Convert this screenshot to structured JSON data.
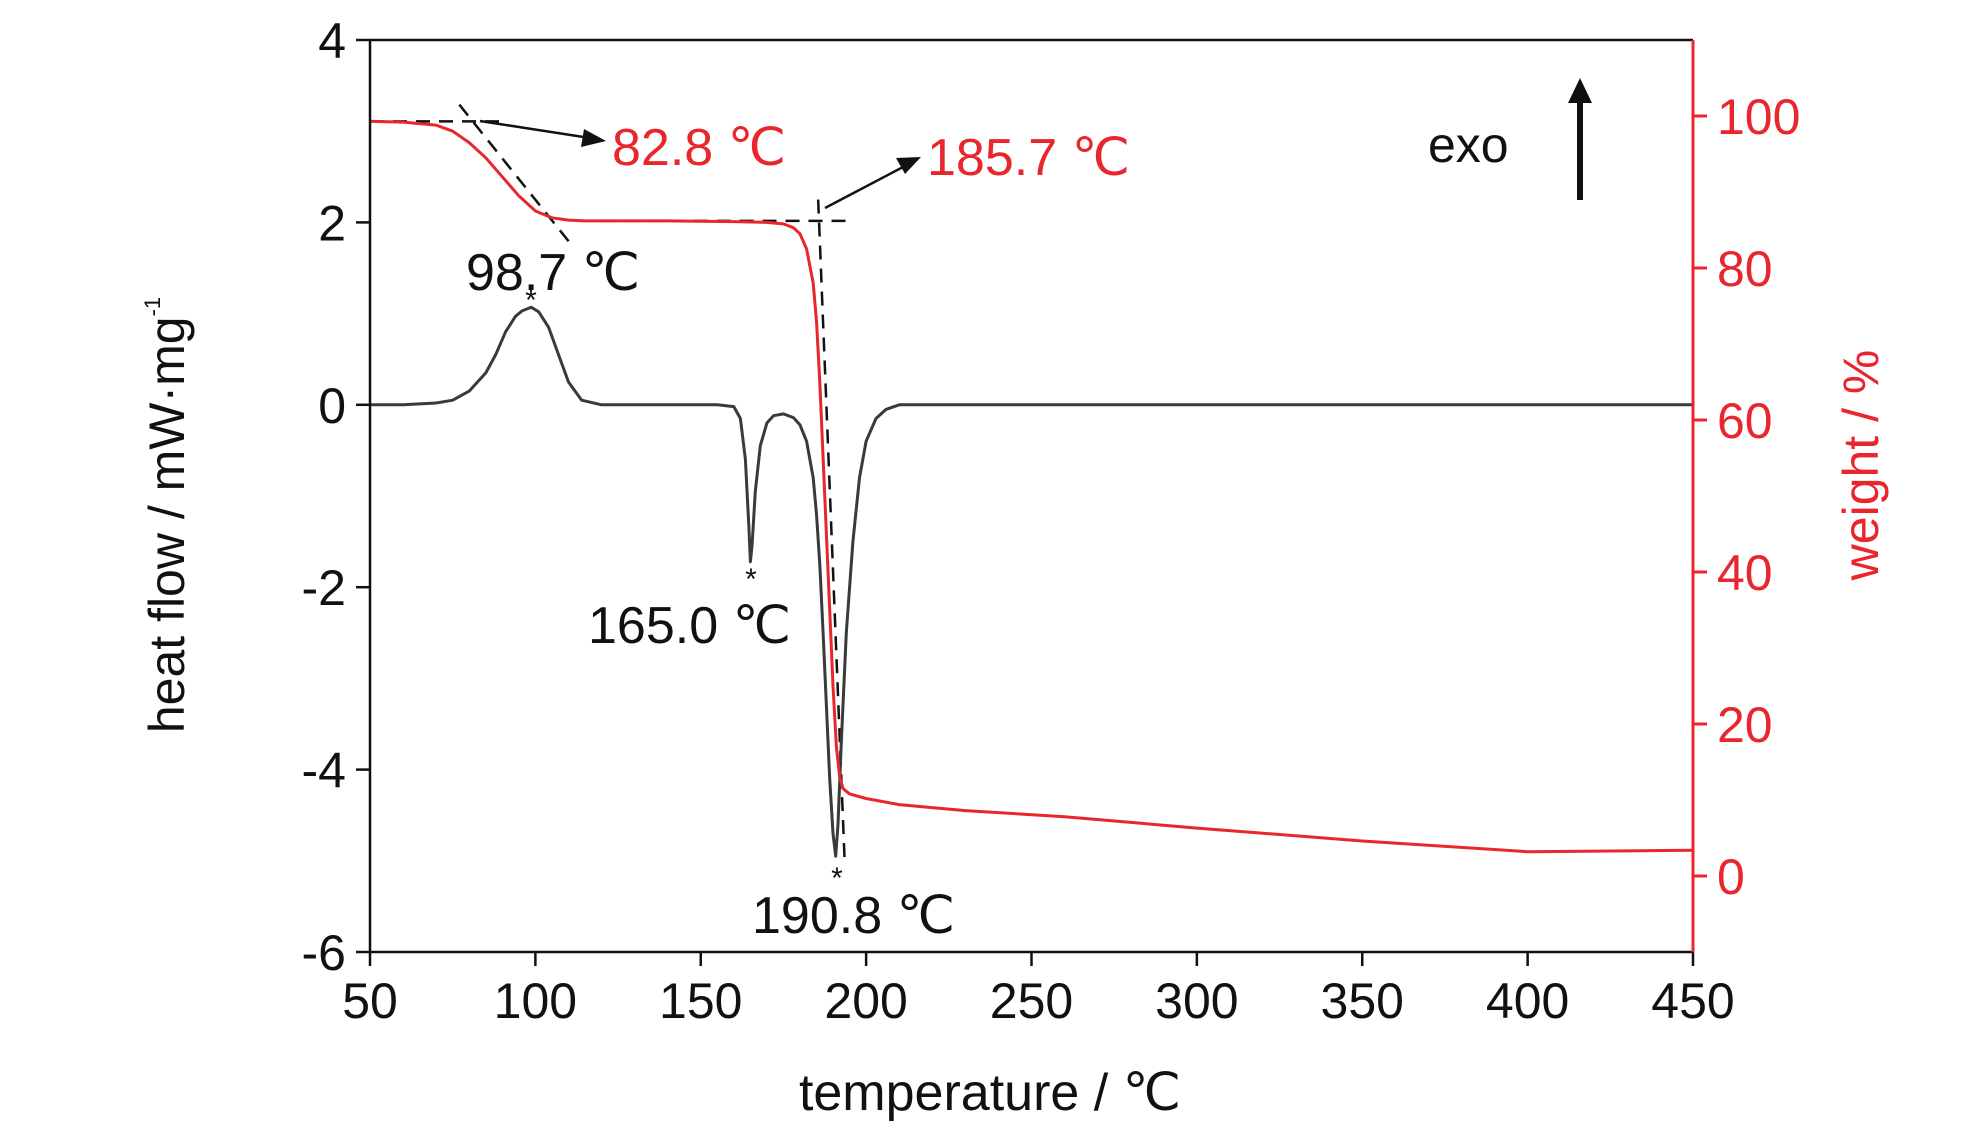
{
  "chart_data": {
    "type": "line",
    "xlabel": "temperature / ℃",
    "ylabel_left": "heat flow / mW·mg",
    "ylabel_left_sup": "-1",
    "ylabel_right": "weight / %",
    "xlim": [
      50,
      450
    ],
    "ylim_left": [
      -6,
      4
    ],
    "ylim_right": [
      -10,
      110
    ],
    "x_ticks": [
      "50",
      "100",
      "150",
      "200",
      "250",
      "300",
      "350",
      "400",
      "450"
    ],
    "y_left_ticks": [
      "4",
      "2",
      "0",
      "-2",
      "-4",
      "-6"
    ],
    "y_right_ticks": [
      "100",
      "80",
      "60",
      "40",
      "20",
      "0"
    ],
    "colors": {
      "dsc": "#3a3a3a",
      "tg": "#e8262b",
      "axis_right": "#e8262b",
      "annot_red": "#e8262b",
      "annot_black": "#111111"
    },
    "series": [
      {
        "axis": "left",
        "x": [
          50,
          60,
          70,
          75,
          80,
          85,
          88,
          91,
          94,
          96,
          98.7,
          101,
          104,
          107,
          110,
          114,
          120,
          140,
          155,
          160,
          162,
          163.5,
          164.5,
          165,
          165.5,
          166.5,
          168,
          170,
          172,
          175,
          178,
          180,
          182,
          184,
          185,
          186,
          187,
          188,
          189,
          190,
          190.8,
          191.5,
          192.5,
          194,
          196,
          198,
          200,
          203,
          206,
          210,
          215,
          220,
          250,
          300,
          350,
          400,
          450
        ],
        "y": [
          0.0,
          0.0,
          0.02,
          0.05,
          0.15,
          0.35,
          0.55,
          0.8,
          0.97,
          1.03,
          1.07,
          1.02,
          0.85,
          0.55,
          0.25,
          0.05,
          0.0,
          0.0,
          0.0,
          -0.02,
          -0.15,
          -0.6,
          -1.3,
          -1.72,
          -1.55,
          -0.95,
          -0.45,
          -0.2,
          -0.12,
          -0.1,
          -0.14,
          -0.22,
          -0.4,
          -0.8,
          -1.2,
          -1.75,
          -2.5,
          -3.3,
          -4.1,
          -4.7,
          -4.95,
          -4.6,
          -3.7,
          -2.5,
          -1.5,
          -0.8,
          -0.4,
          -0.15,
          -0.05,
          0.0,
          0.0,
          0.0,
          0.0,
          0.0,
          0.0,
          0.0,
          0.0
        ]
      },
      {
        "axis": "right",
        "x": [
          50,
          60,
          70,
          75,
          80,
          85,
          90,
          95,
          100,
          105,
          110,
          115,
          120,
          140,
          160,
          170,
          175,
          178,
          180,
          182,
          184,
          185,
          186,
          187,
          188,
          189,
          190,
          191,
          192,
          193,
          195,
          200,
          210,
          230,
          260,
          300,
          350,
          400,
          430,
          450
        ],
        "y": [
          99.3,
          99.2,
          98.8,
          98.0,
          96.5,
          94.5,
          92.0,
          89.5,
          87.5,
          86.6,
          86.3,
          86.2,
          86.2,
          86.2,
          86.1,
          86.0,
          85.8,
          85.3,
          84.5,
          82.5,
          78.0,
          73.0,
          65.0,
          55.0,
          45.0,
          35.0,
          25.0,
          17.0,
          13.0,
          11.5,
          10.8,
          10.2,
          9.4,
          8.6,
          7.8,
          6.3,
          4.6,
          3.2,
          3.3,
          3.4
        ]
      }
    ],
    "annotations": {
      "tg_onset1": "82.8 ℃",
      "tg_onset2": "185.7 ℃",
      "peak1": "98.7 ℃",
      "peak2": "165.0 ℃",
      "peak3": "190.8 ℃",
      "marker": "*",
      "exo": "exo"
    }
  }
}
